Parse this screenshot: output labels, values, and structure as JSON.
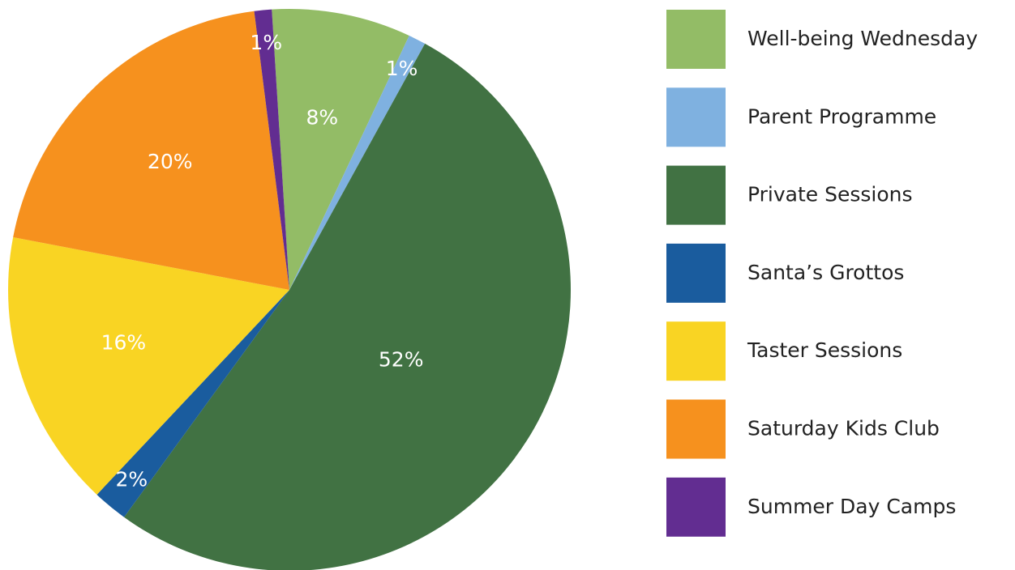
{
  "chart_data": {
    "type": "pie",
    "categories": [
      "Well-being Wednesday",
      "Parent Programme",
      "Private Sessions",
      "Santa’s Grottos",
      "Taster Sessions",
      "Saturday Kids Club",
      "Summer Day Camps"
    ],
    "values": [
      8,
      1,
      52,
      2,
      16,
      20,
      1
    ],
    "value_labels": [
      "8%",
      "1%",
      "52%",
      "2%",
      "16%",
      "20%",
      "1%"
    ],
    "colors": [
      "#93bc66",
      "#7fb1e0",
      "#417243",
      "#1a5c9e",
      "#f9d423",
      "#f6911e",
      "#622d91"
    ],
    "legend": "right"
  }
}
